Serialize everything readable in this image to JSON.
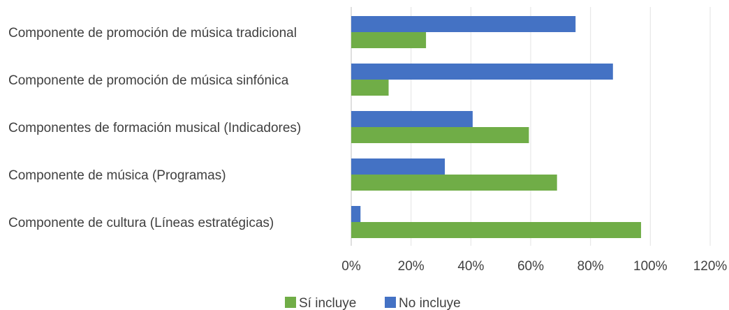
{
  "chart_data": {
    "type": "bar",
    "orientation": "horizontal",
    "categories": [
      "Componente de promoción de música tradicional",
      "Componente de promoción de música sinfónica",
      "Componentes de formación musical (Indicadores)",
      "Componente de música (Programas)",
      "Componente de cultura (Líneas estratégicas)"
    ],
    "series": [
      {
        "name": "No incluye",
        "color": "#4472C4",
        "values": [
          75,
          87.5,
          40.6,
          31.3,
          3.1
        ]
      },
      {
        "name": "Sí incluye",
        "color": "#70AD47",
        "values": [
          25,
          12.5,
          59.4,
          68.8,
          96.9
        ]
      }
    ],
    "xlim": [
      0,
      120
    ],
    "xticks": [
      "0%",
      "20%",
      "40%",
      "60%",
      "80%",
      "100%",
      "120%"
    ],
    "grid": true,
    "legend": {
      "position": "bottom",
      "entries": [
        "Sí incluye",
        "No incluye"
      ]
    }
  }
}
